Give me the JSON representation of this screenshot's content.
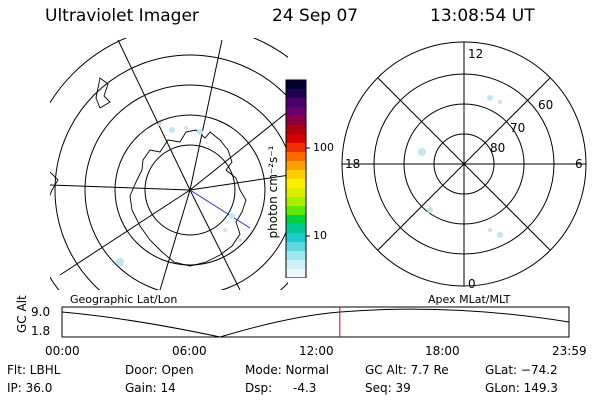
{
  "header": {
    "instrument": "Ultraviolet Imager",
    "date": "24 Sep 07",
    "time": "13:08:54 UT"
  },
  "colorbar": {
    "unit_label": "photon cm⁻²s⁻¹",
    "ticks": [
      "100",
      "10"
    ],
    "colors": [
      "#000030",
      "#200050",
      "#4a006a",
      "#6a006a",
      "#8a0040",
      "#b00010",
      "#d80000",
      "#f03000",
      "#ff6a00",
      "#ffa000",
      "#ffd000",
      "#f8f000",
      "#d8f000",
      "#a8f000",
      "#60e800",
      "#00d040",
      "#00c890",
      "#20c8d0",
      "#60d8e0",
      "#a0e8f0",
      "#d0f0f8",
      "#eaf8fc"
    ]
  },
  "left_plot": {
    "label": "Geographic Lat/Lon"
  },
  "right_plot": {
    "label": "Apex  MLat/MLT",
    "mlt_labels": {
      "top": "12",
      "left": "18",
      "right": "6",
      "bottom": "0"
    },
    "lat_labels": [
      "60",
      "70",
      "80"
    ]
  },
  "timeline": {
    "ylabel": "GC Alt",
    "y_ticks": [
      "9.0",
      "1.8"
    ],
    "x_ticks": [
      "00:00",
      "06:00",
      "12:00",
      "18:00",
      "23:59"
    ],
    "current_time_hours": 13.15,
    "marker_color": "#d00000"
  },
  "info": {
    "filter": "Flt: LBHL",
    "ip": "IP: 36.0",
    "door": "Door: Open",
    "gain": "Gain: 14",
    "mode": "Mode: Normal",
    "dsp_label": "Dsp:",
    "dsp_value": "-4.3",
    "gc_alt": "GC Alt: 7.7 Re",
    "seq": "Seq: 39",
    "glat": "GLat: −74.2",
    "glon": "GLon: 149.3"
  }
}
